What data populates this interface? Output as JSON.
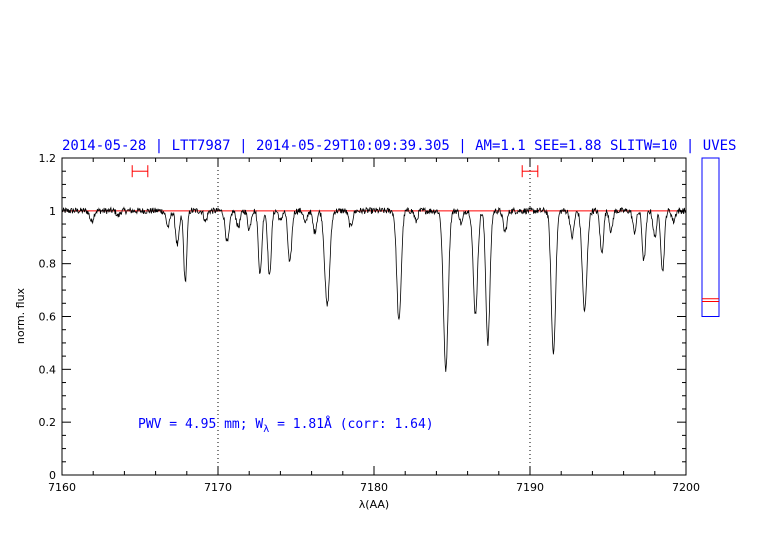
{
  "header": {
    "date": "2014-05-28",
    "star": "LTT7987",
    "timestamp": "2014-05-29T10:09:39.305",
    "am": "AM=1.1",
    "see": "SEE=1.88",
    "slitw": "SLITW=10",
    "instrument": "UVES",
    "separator": "|"
  },
  "annotation": {
    "pwv_prefix": "PWV = 4.95 mm; W",
    "pwv_sub": "λ",
    "pwv_suffix": " = 1.81Å (corr: 1.64)"
  },
  "colors": {
    "header": "#0000ff",
    "spectrum": "#000000",
    "continuum": "#ff0000",
    "range_markers": "#ff0000",
    "side_panel": "#0000ff"
  },
  "chart_data": {
    "type": "line",
    "xlabel": "λ(AA)",
    "ylabel": "norm. flux",
    "xlim": [
      7160,
      7200
    ],
    "ylim": [
      0,
      1.2
    ],
    "x_ticks": [
      7160,
      7170,
      7180,
      7190,
      7200
    ],
    "x_tick_labels": [
      "7160",
      "7170",
      "7180",
      "7190",
      "7200"
    ],
    "y_ticks": [
      0,
      0.2,
      0.4,
      0.6,
      0.8,
      1,
      1.2
    ],
    "y_tick_labels": [
      "0",
      "0.2",
      "0.4",
      "0.6",
      "0.8",
      "1",
      "1.2"
    ],
    "vertical_dotted_lines": [
      7170,
      7190
    ],
    "continuum_level": 1.0,
    "range_markers": [
      {
        "x_start": 7164.5,
        "x_end": 7165.5,
        "y": 1.15
      },
      {
        "x_start": 7189.5,
        "x_end": 7190.5,
        "y": 1.15
      }
    ],
    "side_panel": {
      "ylim": [
        0,
        1.2
      ],
      "box_top": 1.2,
      "box_bottom": 0.6,
      "marker_levels": [
        0.667,
        0.657
      ]
    },
    "series": [
      {
        "absorption_lines": [
          {
            "center": 7161.9,
            "depth": 0.04,
            "width": 0.12
          },
          {
            "center": 7163.6,
            "depth": 0.02,
            "width": 0.1
          },
          {
            "center": 7166.8,
            "depth": 0.06,
            "width": 0.12
          },
          {
            "center": 7167.4,
            "depth": 0.13,
            "width": 0.12
          },
          {
            "center": 7167.9,
            "depth": 0.27,
            "width": 0.1
          },
          {
            "center": 7169.2,
            "depth": 0.04,
            "width": 0.1
          },
          {
            "center": 7170.6,
            "depth": 0.12,
            "width": 0.13
          },
          {
            "center": 7171.3,
            "depth": 0.06,
            "width": 0.12
          },
          {
            "center": 7172.0,
            "depth": 0.07,
            "width": 0.1
          },
          {
            "center": 7172.7,
            "depth": 0.24,
            "width": 0.11
          },
          {
            "center": 7173.3,
            "depth": 0.25,
            "width": 0.11
          },
          {
            "center": 7174.0,
            "depth": 0.04,
            "width": 0.1
          },
          {
            "center": 7174.6,
            "depth": 0.2,
            "width": 0.12
          },
          {
            "center": 7175.6,
            "depth": 0.05,
            "width": 0.1
          },
          {
            "center": 7176.2,
            "depth": 0.08,
            "width": 0.12
          },
          {
            "center": 7177.0,
            "depth": 0.36,
            "width": 0.16
          },
          {
            "center": 7178.5,
            "depth": 0.06,
            "width": 0.12
          },
          {
            "center": 7181.6,
            "depth": 0.42,
            "width": 0.14
          },
          {
            "center": 7182.7,
            "depth": 0.04,
            "width": 0.1
          },
          {
            "center": 7184.6,
            "depth": 0.6,
            "width": 0.15
          },
          {
            "center": 7185.6,
            "depth": 0.05,
            "width": 0.1
          },
          {
            "center": 7186.5,
            "depth": 0.39,
            "width": 0.14
          },
          {
            "center": 7187.3,
            "depth": 0.5,
            "width": 0.13
          },
          {
            "center": 7188.4,
            "depth": 0.08,
            "width": 0.12
          },
          {
            "center": 7191.5,
            "depth": 0.54,
            "width": 0.14
          },
          {
            "center": 7192.7,
            "depth": 0.1,
            "width": 0.12
          },
          {
            "center": 7193.5,
            "depth": 0.38,
            "width": 0.15
          },
          {
            "center": 7194.6,
            "depth": 0.16,
            "width": 0.11
          },
          {
            "center": 7195.2,
            "depth": 0.08,
            "width": 0.1
          },
          {
            "center": 7196.7,
            "depth": 0.08,
            "width": 0.11
          },
          {
            "center": 7197.3,
            "depth": 0.19,
            "width": 0.11
          },
          {
            "center": 7198.0,
            "depth": 0.1,
            "width": 0.11
          },
          {
            "center": 7198.5,
            "depth": 0.23,
            "width": 0.11
          },
          {
            "center": 7199.2,
            "depth": 0.04,
            "width": 0.1
          }
        ],
        "continuum": 1.0,
        "noise_amplitude": 0.012
      }
    ]
  }
}
